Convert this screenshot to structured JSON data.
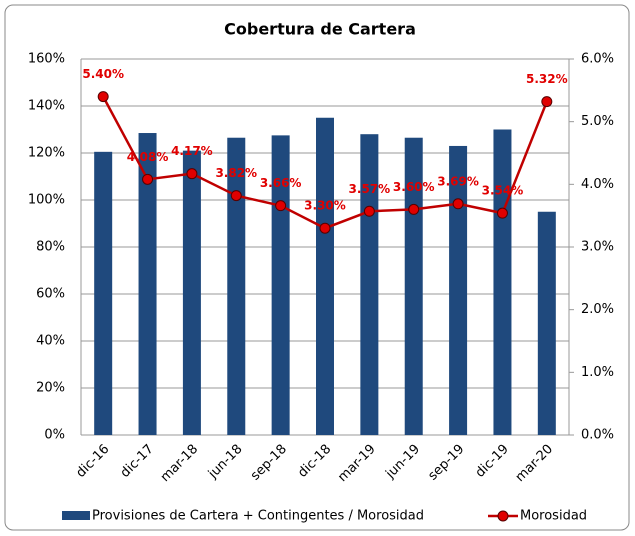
{
  "chart_data": {
    "type": "bar_line",
    "title": "Cobertura de Cartera",
    "categories": [
      "dic-16",
      "dic-17",
      "mar-18",
      "jun-18",
      "sep-18",
      "dic-18",
      "mar-19",
      "jun-19",
      "sep-19",
      "dic-19",
      "mar-20"
    ],
    "series": [
      {
        "name": "Provisiones de Cartera + Contingentes / Morosidad",
        "color": "#1f497d",
        "type": "bar",
        "axis": "y",
        "values": [
          120.5,
          128.5,
          121,
          126.5,
          127.5,
          135,
          128,
          126.5,
          123,
          130,
          95
        ]
      },
      {
        "name": "Morosidad",
        "color": "#c00000",
        "type": "line",
        "axis": "y2",
        "values": [
          5.4,
          4.08,
          4.17,
          3.82,
          3.66,
          3.3,
          3.57,
          3.6,
          3.69,
          3.54,
          5.32
        ],
        "value_labels": [
          "5.40%",
          "4.08%",
          "4.17%",
          "3.82%",
          "3.66%",
          "3.30%",
          "3.57%",
          "3.60%",
          "3.69%",
          "3.54%",
          "5.32%"
        ]
      }
    ],
    "ylim": [
      0,
      160
    ],
    "yticks": [
      {
        "value": 0,
        "label": "0%"
      },
      {
        "value": 20,
        "label": "20%"
      },
      {
        "value": 40,
        "label": "40%"
      },
      {
        "value": 60,
        "label": "60%"
      },
      {
        "value": 80,
        "label": "80%"
      },
      {
        "value": 100,
        "label": "100%"
      },
      {
        "value": 120,
        "label": "120%"
      },
      {
        "value": 140,
        "label": "140%"
      },
      {
        "value": 160,
        "label": "160%"
      }
    ],
    "y2lim": [
      0,
      6
    ],
    "y2ticks": [
      {
        "value": 0,
        "label": "0.0%"
      },
      {
        "value": 1,
        "label": "1.0%"
      },
      {
        "value": 2,
        "label": "2.0%"
      },
      {
        "value": 3,
        "label": "3.0%"
      },
      {
        "value": 4,
        "label": "4.0%"
      },
      {
        "value": 5,
        "label": "5.0%"
      },
      {
        "value": 6,
        "label": "6.0%"
      }
    ],
    "grid": true,
    "legend": "bottom"
  }
}
